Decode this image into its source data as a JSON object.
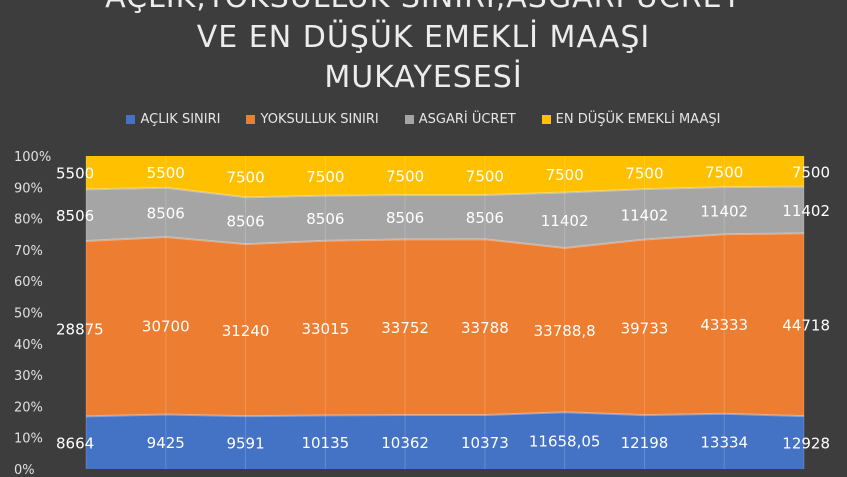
{
  "chart_data": {
    "type": "area",
    "stacked": "percent",
    "title_lines": [
      "AÇLIK,YOKSULLUK SINIRI,ASGARİ ÜCRET",
      "VE EN DÜŞÜK EMEKLİ MAAŞI",
      "MUKAYESESİ"
    ],
    "legend_position": "top",
    "grid": true,
    "y_ticks": [
      "0%",
      "10%",
      "20%",
      "30%",
      "40%",
      "50%",
      "60%",
      "70%",
      "80%",
      "90%",
      "100%"
    ],
    "ylim": [
      0,
      100
    ],
    "series": [
      {
        "name": "AÇLIK SINIRI",
        "color": "#4472c4",
        "values": [
          8664,
          9425,
          9591,
          10135,
          10362,
          10373,
          11658.05,
          12198,
          13334,
          12928
        ],
        "labels": [
          "8664",
          "9425",
          "9591",
          "10135",
          "10362",
          "10373",
          "11658,05",
          "12198",
          "13334",
          "12928"
        ]
      },
      {
        "name": "YOKSULLUK SINIRI",
        "color": "#ed7d31",
        "values": [
          28875,
          30700,
          31240,
          33015,
          33752,
          33788,
          33788.8,
          39733,
          43333,
          44718
        ],
        "labels": [
          "28875",
          "30700",
          "31240",
          "33015",
          "33752",
          "33788",
          "33788,8",
          "39733",
          "43333",
          "44718"
        ]
      },
      {
        "name": "ASGARİ ÜCRET",
        "color": "#a5a5a5",
        "values": [
          8506,
          8506,
          8506,
          8506,
          8506,
          8506,
          11402,
          11402,
          11402,
          11402
        ],
        "labels": [
          "8506",
          "8506",
          "8506",
          "8506",
          "8506",
          "8506",
          "11402",
          "11402",
          "11402",
          "11402"
        ]
      },
      {
        "name": "EN DÜŞÜK EMEKLİ MAAŞI",
        "color": "#ffc000",
        "values": [
          5500,
          5500,
          7500,
          7500,
          7500,
          7500,
          7500,
          7500,
          7500,
          7500
        ],
        "labels": [
          "5500",
          "5500",
          "7500",
          "7500",
          "7500",
          "7500",
          "7500",
          "7500",
          "7500",
          "7500"
        ]
      }
    ]
  }
}
